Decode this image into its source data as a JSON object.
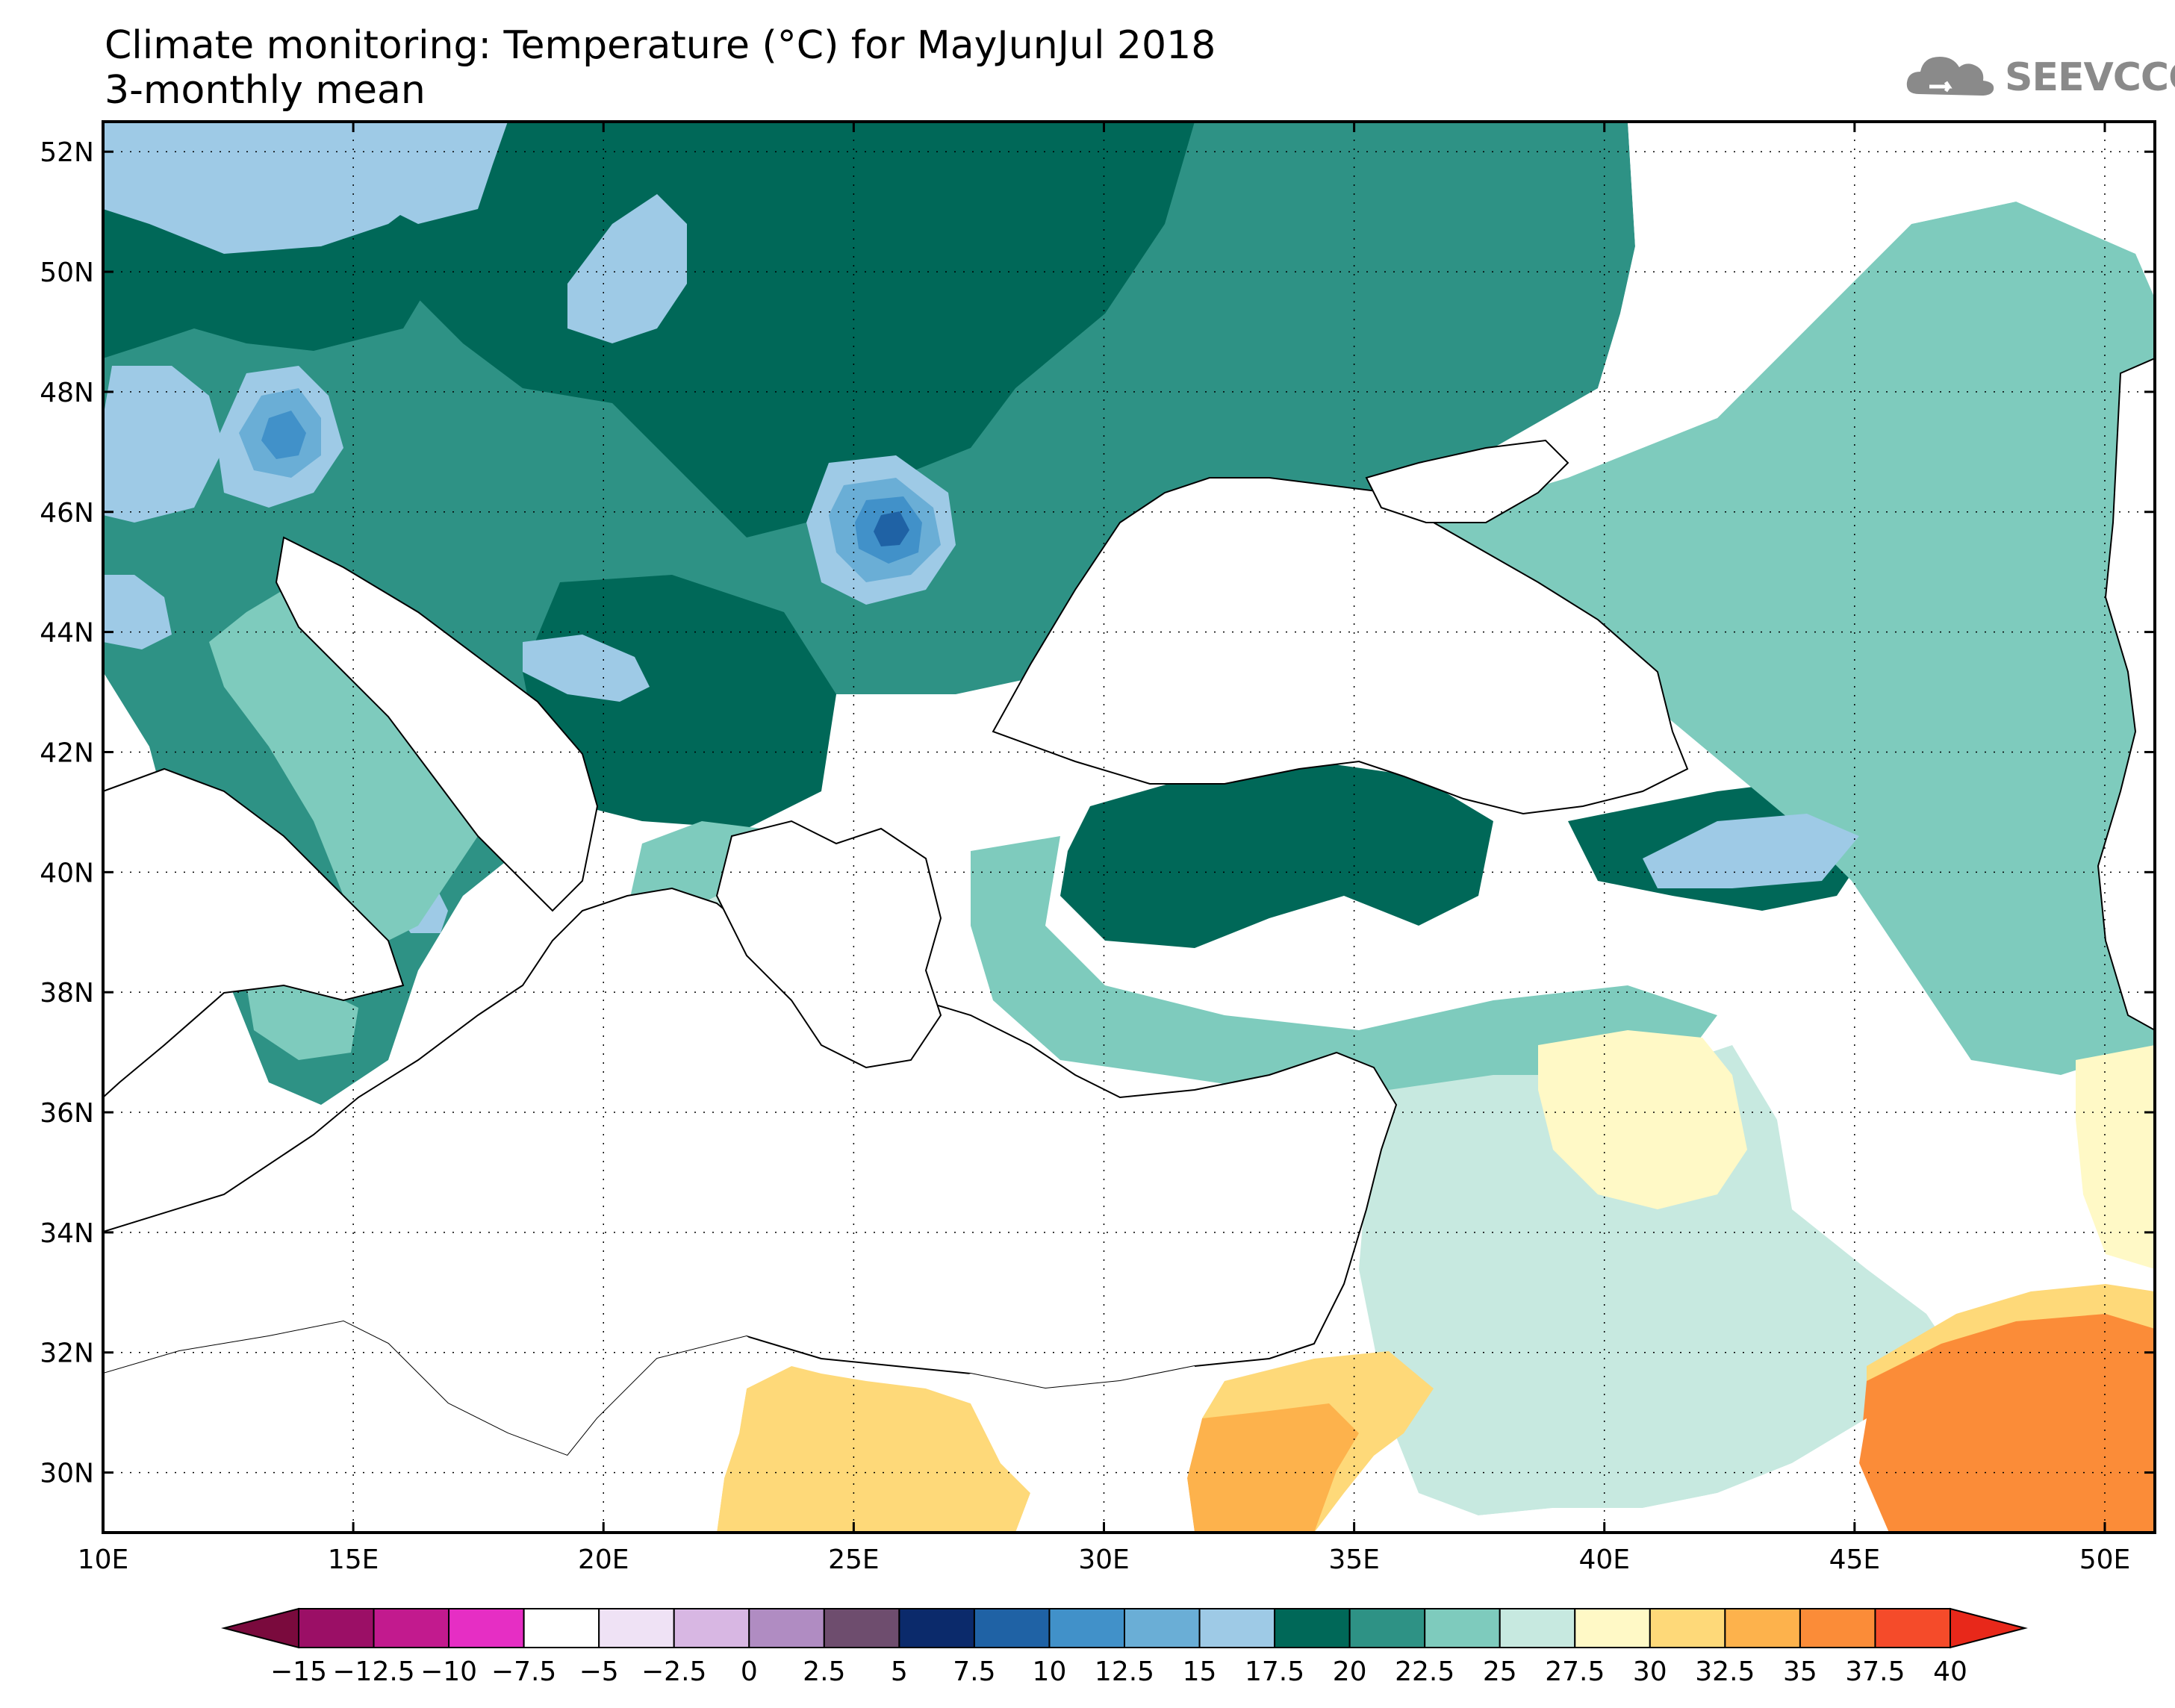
{
  "title": {
    "line1": "Climate monitoring: Temperature (°C) for MayJunJul 2018",
    "line2": "3-monthly mean"
  },
  "logo": {
    "text": "SEEVCCC",
    "icon": "cloud-logo-icon"
  },
  "map": {
    "lon_range": [
      10,
      51
    ],
    "lat_range": [
      29,
      52.5
    ],
    "lon_ticks": [
      "10E",
      "15E",
      "20E",
      "25E",
      "30E",
      "35E",
      "40E",
      "45E",
      "50E"
    ],
    "lat_ticks": [
      "52N",
      "50N",
      "48N",
      "46N",
      "44N",
      "42N",
      "40N",
      "38N",
      "36N",
      "34N",
      "32N",
      "30N"
    ],
    "grid": "dotted"
  },
  "colorbar": {
    "labels": [
      "-15",
      "-12.5",
      "-10",
      "-7.5",
      "-5",
      "-2.5",
      "0",
      "2.5",
      "5",
      "7.5",
      "10",
      "12.5",
      "15",
      "17.5",
      "20",
      "22.5",
      "25",
      "27.5",
      "30",
      "32.5",
      "35",
      "37.5",
      "40"
    ],
    "under_color": "#7a0a3d",
    "over_color": "#e8281a",
    "colors": [
      "#9b0f66",
      "#c21a8e",
      "#e62ec4",
      "#ffffff",
      "#efe2f5",
      "#d8b7e3",
      "#b08cc2",
      "#6e4d6e",
      "#0b2a6b",
      "#1f62a5",
      "#4191c9",
      "#6aaed6",
      "#9ecae6",
      "#006858",
      "#2e9285",
      "#7ecbbd",
      "#c7e9e0",
      "#fff9c6",
      "#fed979",
      "#fdb24c",
      "#fb8c38",
      "#f54b2a"
    ]
  },
  "colors": {
    "c20": "#006858",
    "c22_5": "#2e9285",
    "c25": "#7ecbbd",
    "c27_5": "#c7e9e0",
    "c30": "#fff9c6",
    "c32_5": "#fed979",
    "c35": "#fdb24c",
    "c37_5": "#fb8c38",
    "c15": "#9ecae6",
    "c12_5": "#6aaed6",
    "c10": "#4191c9",
    "c7_5": "#1f62a5",
    "c5": "#0b2a6b"
  }
}
